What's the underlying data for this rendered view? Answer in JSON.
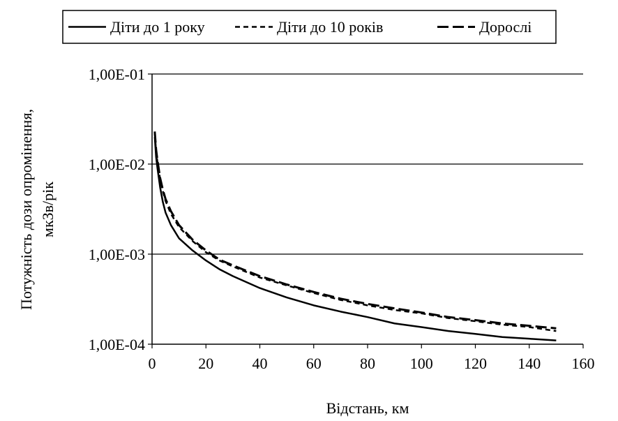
{
  "chart_data": {
    "type": "line",
    "xlabel": "Відстань, км",
    "ylabel_lines": [
      "Потужність дози опромінення,",
      "мкЗв/рік"
    ],
    "xlim": [
      0,
      160
    ],
    "ylim": [
      0.0001,
      0.1
    ],
    "yscale": "log",
    "grid": "horizontal",
    "legend_position": "top",
    "x_ticks": [
      0,
      20,
      40,
      60,
      80,
      100,
      120,
      140,
      160
    ],
    "x_tick_labels": [
      "0",
      "20",
      "40",
      "60",
      "80",
      "100",
      "120",
      "140",
      "160"
    ],
    "y_ticks": [
      0.0001,
      0.001,
      0.01,
      0.1
    ],
    "y_tick_labels": [
      "1,00E-04",
      "1,00E-03",
      "1,00E-02",
      "1,00E-01"
    ],
    "series": [
      {
        "name": "Діти до 1 року",
        "style": "solid",
        "color": "#000000",
        "x": [
          1,
          1.5,
          2,
          3,
          4,
          5,
          7,
          10,
          15,
          20,
          25,
          30,
          40,
          50,
          60,
          70,
          80,
          90,
          100,
          110,
          120,
          130,
          140,
          150
        ],
        "y": [
          0.02,
          0.012,
          0.009,
          0.0055,
          0.0038,
          0.0029,
          0.0021,
          0.0015,
          0.0011,
          0.00085,
          0.00068,
          0.00057,
          0.00042,
          0.00033,
          0.00027,
          0.00023,
          0.0002,
          0.00017,
          0.000155,
          0.00014,
          0.00013,
          0.00012,
          0.000115,
          0.00011
        ]
      },
      {
        "name": "Діти до 10 років",
        "style": "dotted",
        "color": "#000000",
        "x": [
          1,
          1.5,
          2,
          3,
          4,
          5,
          7,
          10,
          15,
          20,
          25,
          30,
          40,
          50,
          60,
          70,
          80,
          90,
          100,
          110,
          120,
          130,
          140,
          150
        ],
        "y": [
          0.022,
          0.014,
          0.0105,
          0.0068,
          0.005,
          0.0039,
          0.0028,
          0.002,
          0.0014,
          0.00105,
          0.00085,
          0.00073,
          0.00055,
          0.00045,
          0.00037,
          0.00031,
          0.00027,
          0.00024,
          0.00022,
          0.000195,
          0.00018,
          0.000165,
          0.000155,
          0.00014
        ]
      },
      {
        "name": "Дорослі",
        "style": "dashed",
        "color": "#000000",
        "x": [
          1,
          1.5,
          2,
          3,
          4,
          5,
          7,
          10,
          15,
          20,
          25,
          30,
          40,
          50,
          60,
          70,
          80,
          90,
          100,
          110,
          120,
          130,
          140,
          150
        ],
        "y": [
          0.023,
          0.0145,
          0.011,
          0.007,
          0.0052,
          0.0041,
          0.003,
          0.0021,
          0.00145,
          0.0011,
          0.00087,
          0.00075,
          0.00057,
          0.00046,
          0.00038,
          0.00032,
          0.00028,
          0.00025,
          0.000225,
          0.0002,
          0.000185,
          0.00017,
          0.00016,
          0.00015
        ]
      }
    ]
  }
}
